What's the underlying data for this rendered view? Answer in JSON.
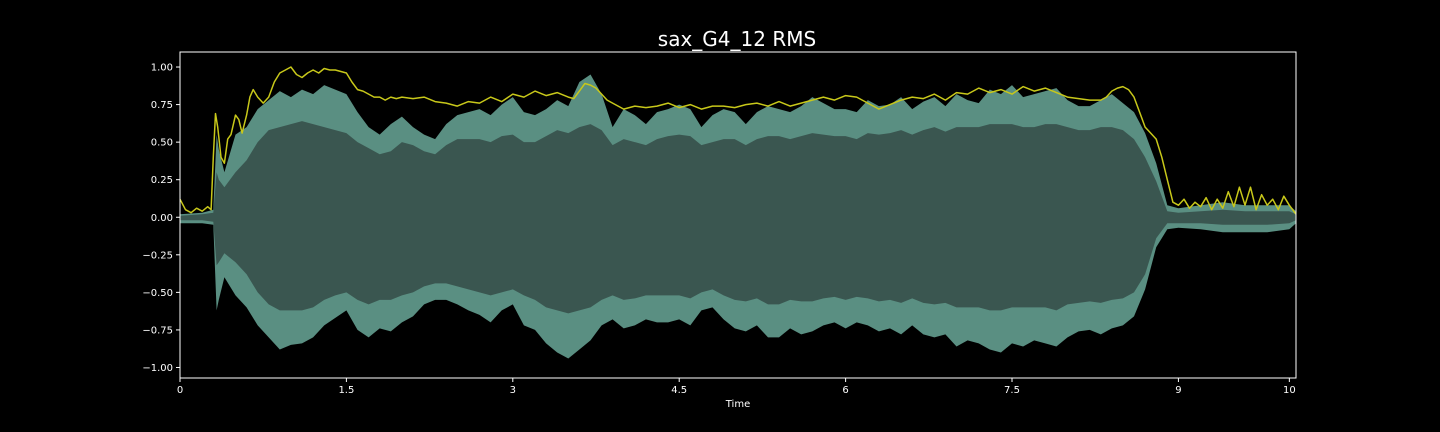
{
  "chart_data": {
    "type": "area",
    "title": "sax_G4_12 RMS",
    "xlabel": "Time",
    "ylabel": "",
    "xlim": [
      0,
      10.06
    ],
    "ylim": [
      -1.07,
      1.1
    ],
    "x_ticks": [
      {
        "value": 0,
        "label": "0"
      },
      {
        "value": 1.5,
        "label": "1.5"
      },
      {
        "value": 3,
        "label": "3"
      },
      {
        "value": 4.5,
        "label": "4.5"
      },
      {
        "value": 6,
        "label": "6"
      },
      {
        "value": 7.5,
        "label": "7.5"
      },
      {
        "value": 9,
        "label": "9"
      },
      {
        "value": 10,
        "label": "10"
      }
    ],
    "y_ticks": [
      {
        "value": 1.0,
        "label": "1.00"
      },
      {
        "value": 0.75,
        "label": "0.75"
      },
      {
        "value": 0.5,
        "label": "0.50"
      },
      {
        "value": 0.25,
        "label": "0.25"
      },
      {
        "value": 0.0,
        "label": "0.00"
      },
      {
        "value": -0.25,
        "label": "−0.25"
      },
      {
        "value": -0.5,
        "label": "−0.50"
      },
      {
        "value": -0.75,
        "label": "−0.75"
      },
      {
        "value": -1.0,
        "label": "−1.00"
      }
    ],
    "grid": false,
    "colors": {
      "background": "#000000",
      "waveform_peak": "#5a8f82",
      "waveform_body": "#3a5650",
      "rms_line": "#c8c81a",
      "axes": "#ffffff"
    },
    "series": [
      {
        "kind": "waveform_envelope",
        "x": [
          0.0,
          0.2,
          0.3,
          0.33,
          0.35,
          0.4,
          0.5,
          0.6,
          0.7,
          0.8,
          0.9,
          1.0,
          1.1,
          1.2,
          1.3,
          1.4,
          1.5,
          1.6,
          1.7,
          1.8,
          1.9,
          2.0,
          2.1,
          2.2,
          2.3,
          2.4,
          2.5,
          2.6,
          2.7,
          2.8,
          2.9,
          3.0,
          3.1,
          3.2,
          3.3,
          3.4,
          3.5,
          3.6,
          3.7,
          3.8,
          3.9,
          4.0,
          4.1,
          4.2,
          4.3,
          4.4,
          4.5,
          4.6,
          4.7,
          4.8,
          4.9,
          5.0,
          5.1,
          5.2,
          5.3,
          5.4,
          5.5,
          5.6,
          5.7,
          5.8,
          5.9,
          6.0,
          6.1,
          6.2,
          6.3,
          6.4,
          6.5,
          6.6,
          6.7,
          6.8,
          6.9,
          7.0,
          7.1,
          7.2,
          7.3,
          7.4,
          7.5,
          7.6,
          7.7,
          7.8,
          7.9,
          8.0,
          8.1,
          8.2,
          8.3,
          8.4,
          8.5,
          8.6,
          8.7,
          8.8,
          8.9,
          9.0,
          9.2,
          9.4,
          9.6,
          9.8,
          10.0,
          10.06
        ],
        "upper": [
          0.02,
          0.03,
          0.05,
          0.55,
          0.45,
          0.3,
          0.55,
          0.6,
          0.72,
          0.78,
          0.84,
          0.8,
          0.85,
          0.82,
          0.88,
          0.85,
          0.82,
          0.7,
          0.6,
          0.55,
          0.62,
          0.67,
          0.6,
          0.55,
          0.52,
          0.62,
          0.68,
          0.7,
          0.72,
          0.68,
          0.75,
          0.8,
          0.7,
          0.68,
          0.72,
          0.78,
          0.74,
          0.9,
          0.95,
          0.82,
          0.6,
          0.72,
          0.68,
          0.62,
          0.7,
          0.72,
          0.75,
          0.72,
          0.6,
          0.68,
          0.72,
          0.7,
          0.62,
          0.7,
          0.74,
          0.72,
          0.7,
          0.74,
          0.8,
          0.76,
          0.72,
          0.72,
          0.7,
          0.78,
          0.74,
          0.75,
          0.8,
          0.72,
          0.77,
          0.8,
          0.74,
          0.82,
          0.78,
          0.76,
          0.85,
          0.82,
          0.88,
          0.8,
          0.82,
          0.84,
          0.86,
          0.78,
          0.74,
          0.74,
          0.78,
          0.82,
          0.76,
          0.7,
          0.56,
          0.36,
          0.08,
          0.06,
          0.08,
          0.1,
          0.08,
          0.08,
          0.08,
          0.04
        ],
        "lower": [
          -0.04,
          -0.04,
          -0.05,
          -0.62,
          -0.55,
          -0.4,
          -0.52,
          -0.6,
          -0.72,
          -0.8,
          -0.88,
          -0.85,
          -0.84,
          -0.8,
          -0.72,
          -0.67,
          -0.62,
          -0.75,
          -0.8,
          -0.74,
          -0.76,
          -0.7,
          -0.66,
          -0.58,
          -0.55,
          -0.55,
          -0.58,
          -0.62,
          -0.65,
          -0.7,
          -0.62,
          -0.58,
          -0.72,
          -0.75,
          -0.84,
          -0.9,
          -0.94,
          -0.88,
          -0.82,
          -0.72,
          -0.68,
          -0.74,
          -0.72,
          -0.68,
          -0.7,
          -0.7,
          -0.68,
          -0.72,
          -0.62,
          -0.6,
          -0.68,
          -0.74,
          -0.76,
          -0.72,
          -0.8,
          -0.8,
          -0.74,
          -0.78,
          -0.76,
          -0.72,
          -0.7,
          -0.74,
          -0.7,
          -0.72,
          -0.76,
          -0.74,
          -0.78,
          -0.72,
          -0.78,
          -0.8,
          -0.78,
          -0.86,
          -0.82,
          -0.84,
          -0.88,
          -0.9,
          -0.84,
          -0.86,
          -0.82,
          -0.84,
          -0.86,
          -0.8,
          -0.76,
          -0.75,
          -0.78,
          -0.74,
          -0.72,
          -0.66,
          -0.48,
          -0.2,
          -0.08,
          -0.07,
          -0.08,
          -0.1,
          -0.1,
          -0.1,
          -0.08,
          -0.04
        ],
        "body_upper": [
          0.01,
          0.02,
          0.03,
          0.3,
          0.25,
          0.2,
          0.3,
          0.38,
          0.5,
          0.58,
          0.6,
          0.62,
          0.64,
          0.62,
          0.6,
          0.58,
          0.56,
          0.5,
          0.46,
          0.42,
          0.44,
          0.5,
          0.48,
          0.44,
          0.42,
          0.48,
          0.52,
          0.52,
          0.52,
          0.5,
          0.54,
          0.55,
          0.5,
          0.5,
          0.54,
          0.58,
          0.56,
          0.6,
          0.62,
          0.58,
          0.48,
          0.52,
          0.5,
          0.48,
          0.52,
          0.54,
          0.55,
          0.54,
          0.48,
          0.5,
          0.52,
          0.52,
          0.48,
          0.52,
          0.54,
          0.54,
          0.52,
          0.54,
          0.56,
          0.55,
          0.54,
          0.54,
          0.52,
          0.56,
          0.55,
          0.56,
          0.58,
          0.55,
          0.58,
          0.6,
          0.57,
          0.6,
          0.6,
          0.6,
          0.62,
          0.62,
          0.62,
          0.6,
          0.6,
          0.62,
          0.62,
          0.6,
          0.58,
          0.58,
          0.6,
          0.6,
          0.58,
          0.52,
          0.4,
          0.24,
          0.04,
          0.03,
          0.04,
          0.05,
          0.04,
          0.04,
          0.04,
          0.02
        ],
        "body_lower": [
          -0.02,
          -0.02,
          -0.03,
          -0.32,
          -0.3,
          -0.24,
          -0.3,
          -0.38,
          -0.5,
          -0.58,
          -0.62,
          -0.62,
          -0.62,
          -0.6,
          -0.55,
          -0.52,
          -0.5,
          -0.55,
          -0.58,
          -0.55,
          -0.55,
          -0.52,
          -0.5,
          -0.46,
          -0.44,
          -0.44,
          -0.46,
          -0.48,
          -0.5,
          -0.52,
          -0.5,
          -0.48,
          -0.52,
          -0.55,
          -0.6,
          -0.62,
          -0.64,
          -0.62,
          -0.6,
          -0.55,
          -0.52,
          -0.55,
          -0.54,
          -0.52,
          -0.52,
          -0.52,
          -0.52,
          -0.54,
          -0.5,
          -0.48,
          -0.52,
          -0.55,
          -0.56,
          -0.54,
          -0.58,
          -0.58,
          -0.55,
          -0.56,
          -0.56,
          -0.54,
          -0.53,
          -0.55,
          -0.53,
          -0.54,
          -0.56,
          -0.55,
          -0.57,
          -0.54,
          -0.57,
          -0.58,
          -0.57,
          -0.6,
          -0.6,
          -0.6,
          -0.62,
          -0.62,
          -0.6,
          -0.6,
          -0.6,
          -0.6,
          -0.62,
          -0.58,
          -0.57,
          -0.56,
          -0.57,
          -0.55,
          -0.54,
          -0.5,
          -0.38,
          -0.14,
          -0.04,
          -0.04,
          -0.04,
          -0.05,
          -0.05,
          -0.05,
          -0.04,
          -0.02
        ]
      },
      {
        "kind": "rms_line",
        "x": [
          0.0,
          0.05,
          0.1,
          0.15,
          0.2,
          0.25,
          0.28,
          0.3,
          0.32,
          0.34,
          0.37,
          0.4,
          0.43,
          0.46,
          0.5,
          0.53,
          0.56,
          0.6,
          0.63,
          0.66,
          0.7,
          0.75,
          0.8,
          0.85,
          0.9,
          0.95,
          1.0,
          1.05,
          1.1,
          1.15,
          1.2,
          1.25,
          1.3,
          1.35,
          1.4,
          1.45,
          1.5,
          1.55,
          1.6,
          1.65,
          1.7,
          1.75,
          1.8,
          1.85,
          1.9,
          1.95,
          2.0,
          2.1,
          2.2,
          2.3,
          2.4,
          2.5,
          2.6,
          2.7,
          2.8,
          2.9,
          3.0,
          3.1,
          3.2,
          3.3,
          3.4,
          3.5,
          3.55,
          3.6,
          3.65,
          3.7,
          3.75,
          3.8,
          3.85,
          3.9,
          4.0,
          4.1,
          4.2,
          4.3,
          4.4,
          4.5,
          4.6,
          4.7,
          4.8,
          4.9,
          5.0,
          5.1,
          5.2,
          5.3,
          5.4,
          5.5,
          5.6,
          5.7,
          5.8,
          5.9,
          6.0,
          6.1,
          6.2,
          6.3,
          6.4,
          6.5,
          6.6,
          6.7,
          6.8,
          6.9,
          7.0,
          7.1,
          7.2,
          7.3,
          7.4,
          7.5,
          7.6,
          7.7,
          7.8,
          7.9,
          8.0,
          8.1,
          8.2,
          8.3,
          8.35,
          8.4,
          8.45,
          8.5,
          8.55,
          8.6,
          8.65,
          8.7,
          8.75,
          8.8,
          8.85,
          8.9,
          8.95,
          9.0,
          9.05,
          9.1,
          9.15,
          9.2,
          9.25,
          9.3,
          9.35,
          9.4,
          9.45,
          9.5,
          9.55,
          9.6,
          9.65,
          9.7,
          9.75,
          9.8,
          9.85,
          9.9,
          9.95,
          10.0,
          10.06
        ],
        "y": [
          0.12,
          0.05,
          0.03,
          0.06,
          0.04,
          0.07,
          0.05,
          0.4,
          0.69,
          0.6,
          0.4,
          0.36,
          0.52,
          0.55,
          0.68,
          0.65,
          0.56,
          0.68,
          0.8,
          0.85,
          0.8,
          0.76,
          0.8,
          0.9,
          0.96,
          0.98,
          1.0,
          0.95,
          0.93,
          0.96,
          0.98,
          0.96,
          0.99,
          0.98,
          0.98,
          0.97,
          0.96,
          0.9,
          0.85,
          0.84,
          0.82,
          0.8,
          0.8,
          0.78,
          0.8,
          0.79,
          0.8,
          0.79,
          0.8,
          0.77,
          0.76,
          0.74,
          0.77,
          0.76,
          0.8,
          0.77,
          0.82,
          0.8,
          0.84,
          0.81,
          0.83,
          0.8,
          0.79,
          0.84,
          0.89,
          0.88,
          0.86,
          0.82,
          0.78,
          0.76,
          0.72,
          0.74,
          0.73,
          0.74,
          0.76,
          0.73,
          0.75,
          0.72,
          0.74,
          0.74,
          0.73,
          0.75,
          0.76,
          0.74,
          0.77,
          0.74,
          0.76,
          0.78,
          0.8,
          0.78,
          0.81,
          0.8,
          0.76,
          0.72,
          0.75,
          0.78,
          0.8,
          0.79,
          0.82,
          0.78,
          0.83,
          0.82,
          0.86,
          0.83,
          0.85,
          0.82,
          0.87,
          0.84,
          0.86,
          0.83,
          0.8,
          0.79,
          0.78,
          0.78,
          0.8,
          0.84,
          0.86,
          0.87,
          0.85,
          0.8,
          0.7,
          0.6,
          0.56,
          0.52,
          0.4,
          0.25,
          0.1,
          0.08,
          0.12,
          0.06,
          0.1,
          0.07,
          0.13,
          0.05,
          0.12,
          0.06,
          0.17,
          0.07,
          0.2,
          0.08,
          0.2,
          0.05,
          0.15,
          0.08,
          0.12,
          0.05,
          0.14,
          0.08,
          0.02
        ]
      }
    ]
  }
}
